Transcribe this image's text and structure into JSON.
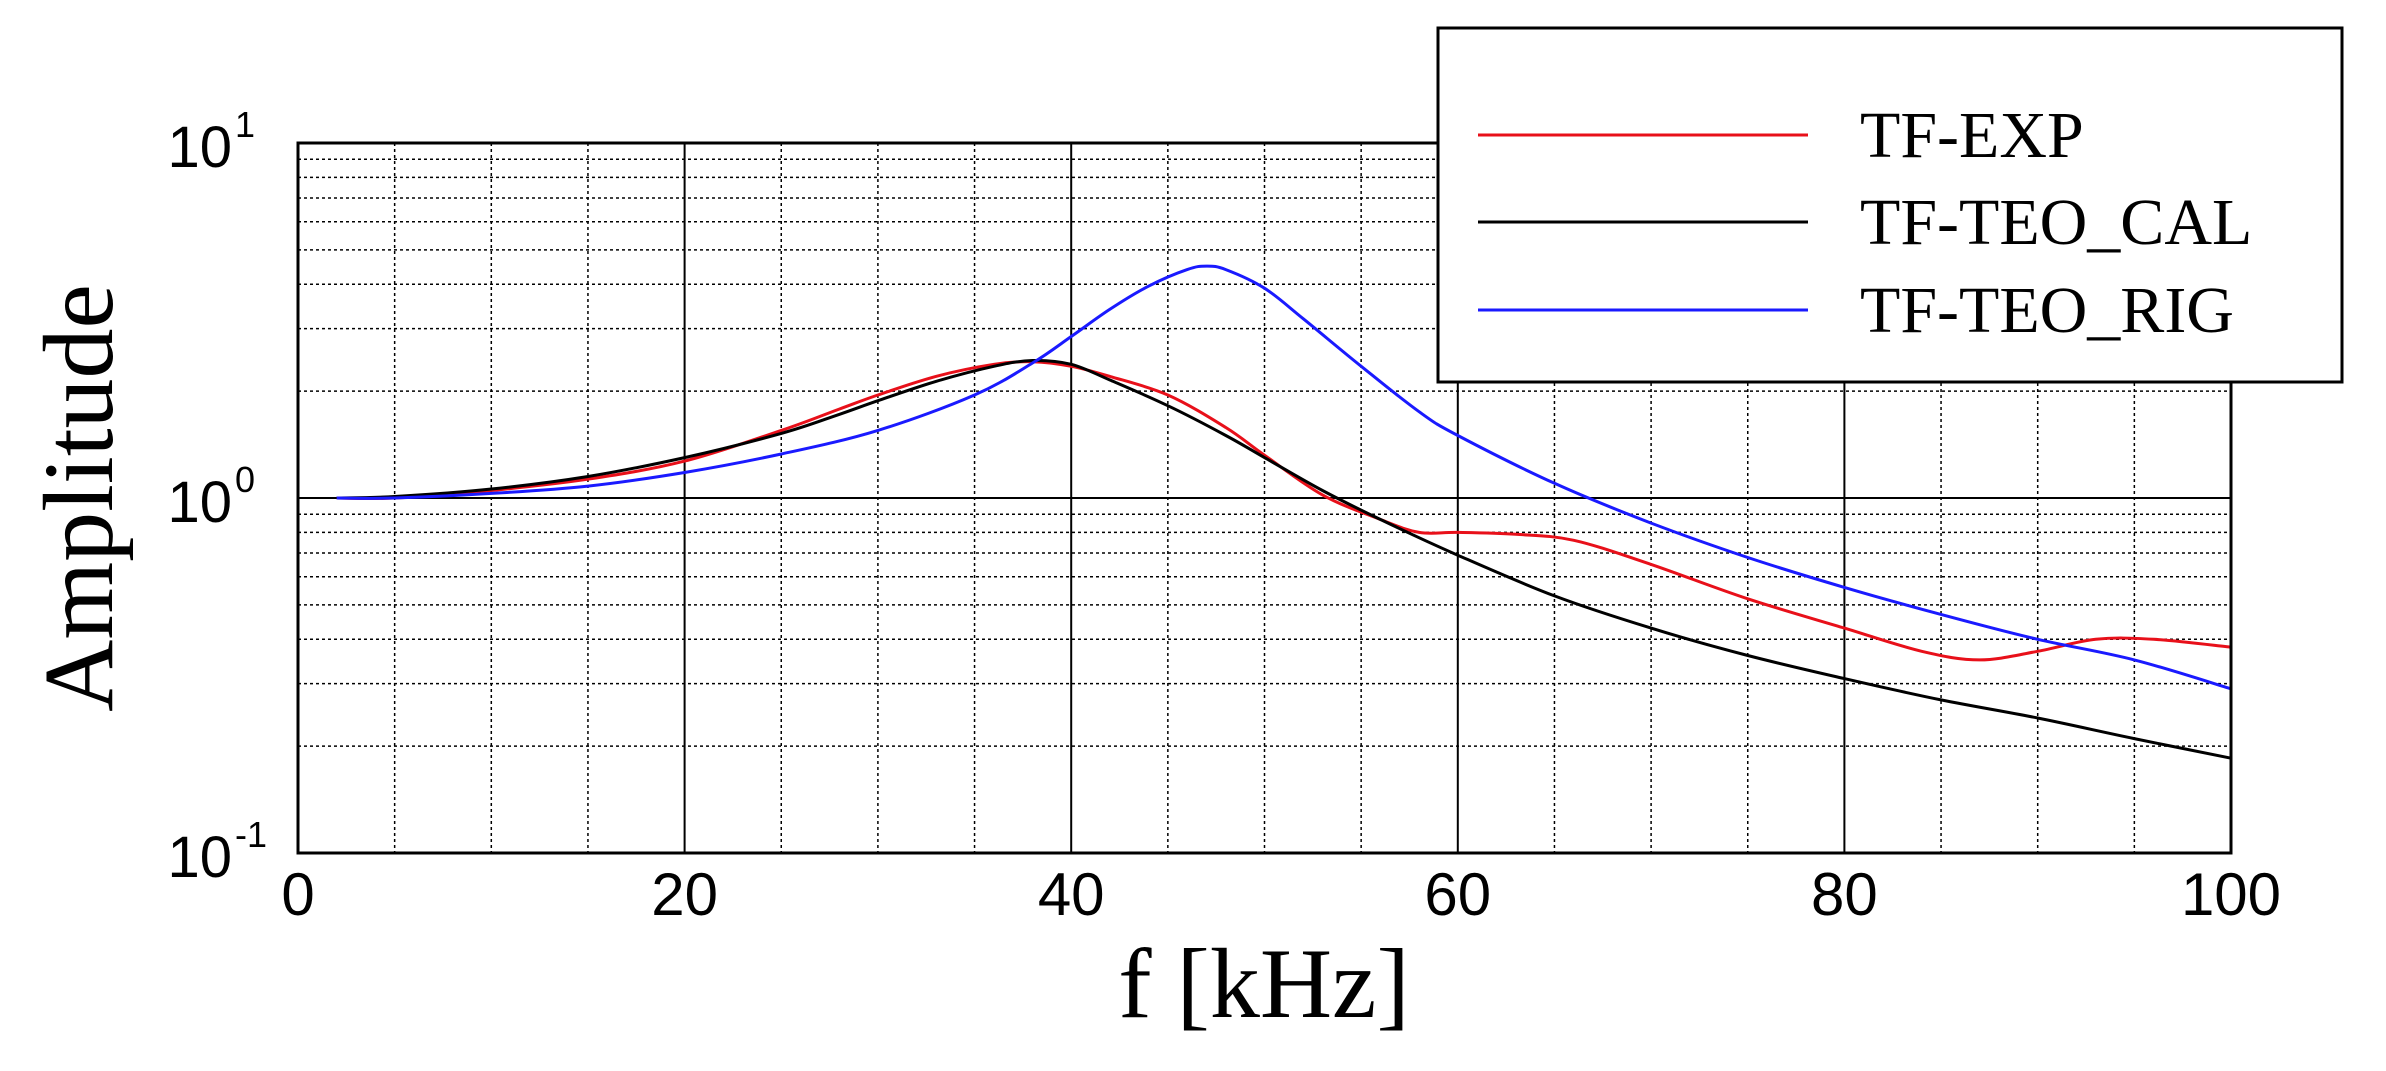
{
  "chart_data": {
    "type": "line",
    "xlabel": "f [kHz]",
    "ylabel": "Amplitude",
    "xlim": [
      0,
      100
    ],
    "ylim": [
      0.1,
      10
    ],
    "yscale": "log",
    "grid": true,
    "legend_position": "top-right",
    "x_ticks": [
      {
        "value": 0,
        "label": "0"
      },
      {
        "value": 20,
        "label": "20"
      },
      {
        "value": 40,
        "label": "40"
      },
      {
        "value": 60,
        "label": "60"
      },
      {
        "value": 80,
        "label": "80"
      },
      {
        "value": 100,
        "label": "100"
      }
    ],
    "y_ticks": [
      {
        "value": 0.1,
        "base": "10",
        "exp": "-1"
      },
      {
        "value": 1,
        "base": "10",
        "exp": "0"
      },
      {
        "value": 10,
        "base": "10",
        "exp": "1"
      }
    ],
    "series": [
      {
        "name": "TF-EXP",
        "color": "#e8101a",
        "x": [
          2,
          5,
          10,
          15,
          20,
          25,
          28,
          30,
          33,
          36,
          38,
          40,
          42,
          45,
          48,
          50,
          53,
          56,
          58,
          60,
          63,
          66,
          70,
          75,
          80,
          84,
          87,
          90,
          93,
          96,
          100
        ],
        "y": [
          1.0,
          1.0,
          1.05,
          1.13,
          1.27,
          1.55,
          1.78,
          1.95,
          2.2,
          2.38,
          2.42,
          2.35,
          2.2,
          1.95,
          1.58,
          1.32,
          1.02,
          0.87,
          0.8,
          0.8,
          0.79,
          0.76,
          0.65,
          0.52,
          0.43,
          0.37,
          0.35,
          0.37,
          0.4,
          0.4,
          0.38
        ]
      },
      {
        "name": "TF-TEO_CAL",
        "color": "#000000",
        "x": [
          2,
          5,
          10,
          15,
          20,
          25,
          28,
          30,
          33,
          36,
          38,
          40,
          42,
          45,
          48,
          50,
          53,
          56,
          60,
          65,
          70,
          75,
          80,
          85,
          90,
          95,
          100
        ],
        "y": [
          1.0,
          1.01,
          1.06,
          1.15,
          1.3,
          1.52,
          1.72,
          1.88,
          2.13,
          2.35,
          2.44,
          2.38,
          2.15,
          1.82,
          1.5,
          1.3,
          1.05,
          0.87,
          0.69,
          0.53,
          0.43,
          0.36,
          0.31,
          0.27,
          0.24,
          0.21,
          0.185
        ]
      },
      {
        "name": "TF-TEO_RIG",
        "color": "#1a1aff",
        "x": [
          2,
          5,
          10,
          15,
          20,
          25,
          30,
          35,
          38,
          40,
          42,
          44,
          46,
          47,
          48,
          50,
          52,
          55,
          58,
          60,
          65,
          70,
          75,
          80,
          85,
          90,
          95,
          100
        ],
        "y": [
          1.0,
          1.0,
          1.03,
          1.08,
          1.18,
          1.33,
          1.55,
          1.95,
          2.4,
          2.85,
          3.4,
          3.95,
          4.4,
          4.5,
          4.4,
          3.9,
          3.2,
          2.35,
          1.75,
          1.5,
          1.1,
          0.85,
          0.68,
          0.56,
          0.47,
          0.4,
          0.35,
          0.29
        ]
      }
    ]
  }
}
